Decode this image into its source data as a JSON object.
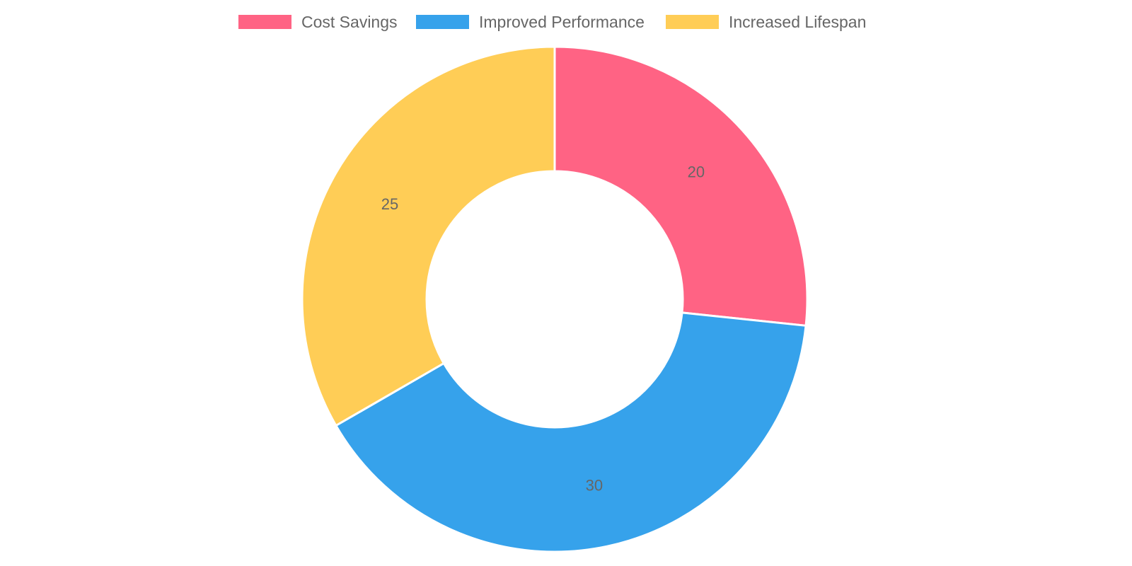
{
  "chart_data": {
    "type": "pie",
    "variant": "doughnut",
    "categories": [
      "Cost Savings",
      "Improved Performance",
      "Increased Lifespan"
    ],
    "values": [
      20,
      30,
      25
    ],
    "colors": [
      "#ff6384",
      "#36a2eb",
      "#ffcd56"
    ],
    "data_labels": [
      "20",
      "30",
      "25"
    ],
    "legend": {
      "position": "top",
      "entries": [
        "Cost Savings",
        "Improved Performance",
        "Increased Lifespan"
      ]
    },
    "slice_border_color": "#ffffff",
    "label_color": "#666666"
  }
}
